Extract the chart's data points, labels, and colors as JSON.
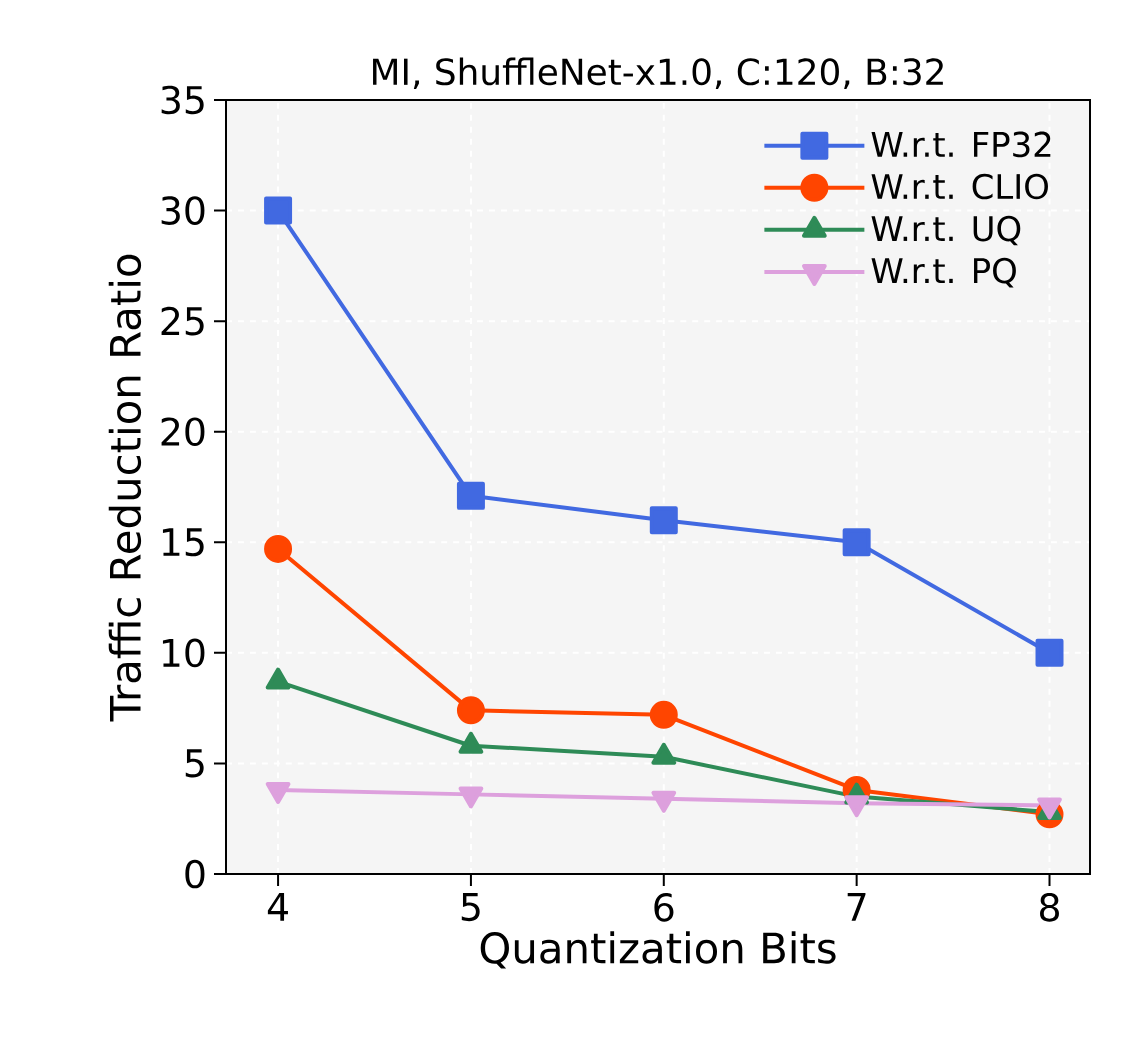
{
  "chart_data": {
    "type": "line",
    "title": "MI, ShuffleNet-x1.0, C:120, B:32",
    "xlabel": "Quantization Bits",
    "ylabel": "Traffic Reduction Ratio",
    "x": [
      4,
      5,
      6,
      7,
      8
    ],
    "series": [
      {
        "name": "W.r.t. FP32",
        "color": "#4169e1",
        "marker": "square",
        "values": [
          30,
          17.1,
          16,
          15,
          10
        ]
      },
      {
        "name": "W.r.t. CLIO",
        "color": "#ff4500",
        "marker": "circle",
        "values": [
          14.7,
          7.4,
          7.2,
          3.8,
          2.7
        ]
      },
      {
        "name": "W.r.t. UQ",
        "color": "#2e8b57",
        "marker": "triangle",
        "values": [
          8.7,
          5.8,
          5.3,
          3.5,
          2.8
        ]
      },
      {
        "name": "W.r.t. PQ",
        "color": "#dda0dd",
        "marker": "triangle down",
        "values": [
          3.8,
          3.6,
          3.4,
          3.2,
          3.1
        ]
      }
    ],
    "xlim": [
      3.73,
      8.21
    ],
    "ylim": [
      0,
      35
    ],
    "xticks": [
      4,
      5,
      6,
      7,
      8
    ],
    "yticks": [
      0,
      5,
      10,
      15,
      20,
      25,
      30,
      35
    ],
    "grid": true,
    "legend": "top right",
    "line_style": "solid"
  }
}
